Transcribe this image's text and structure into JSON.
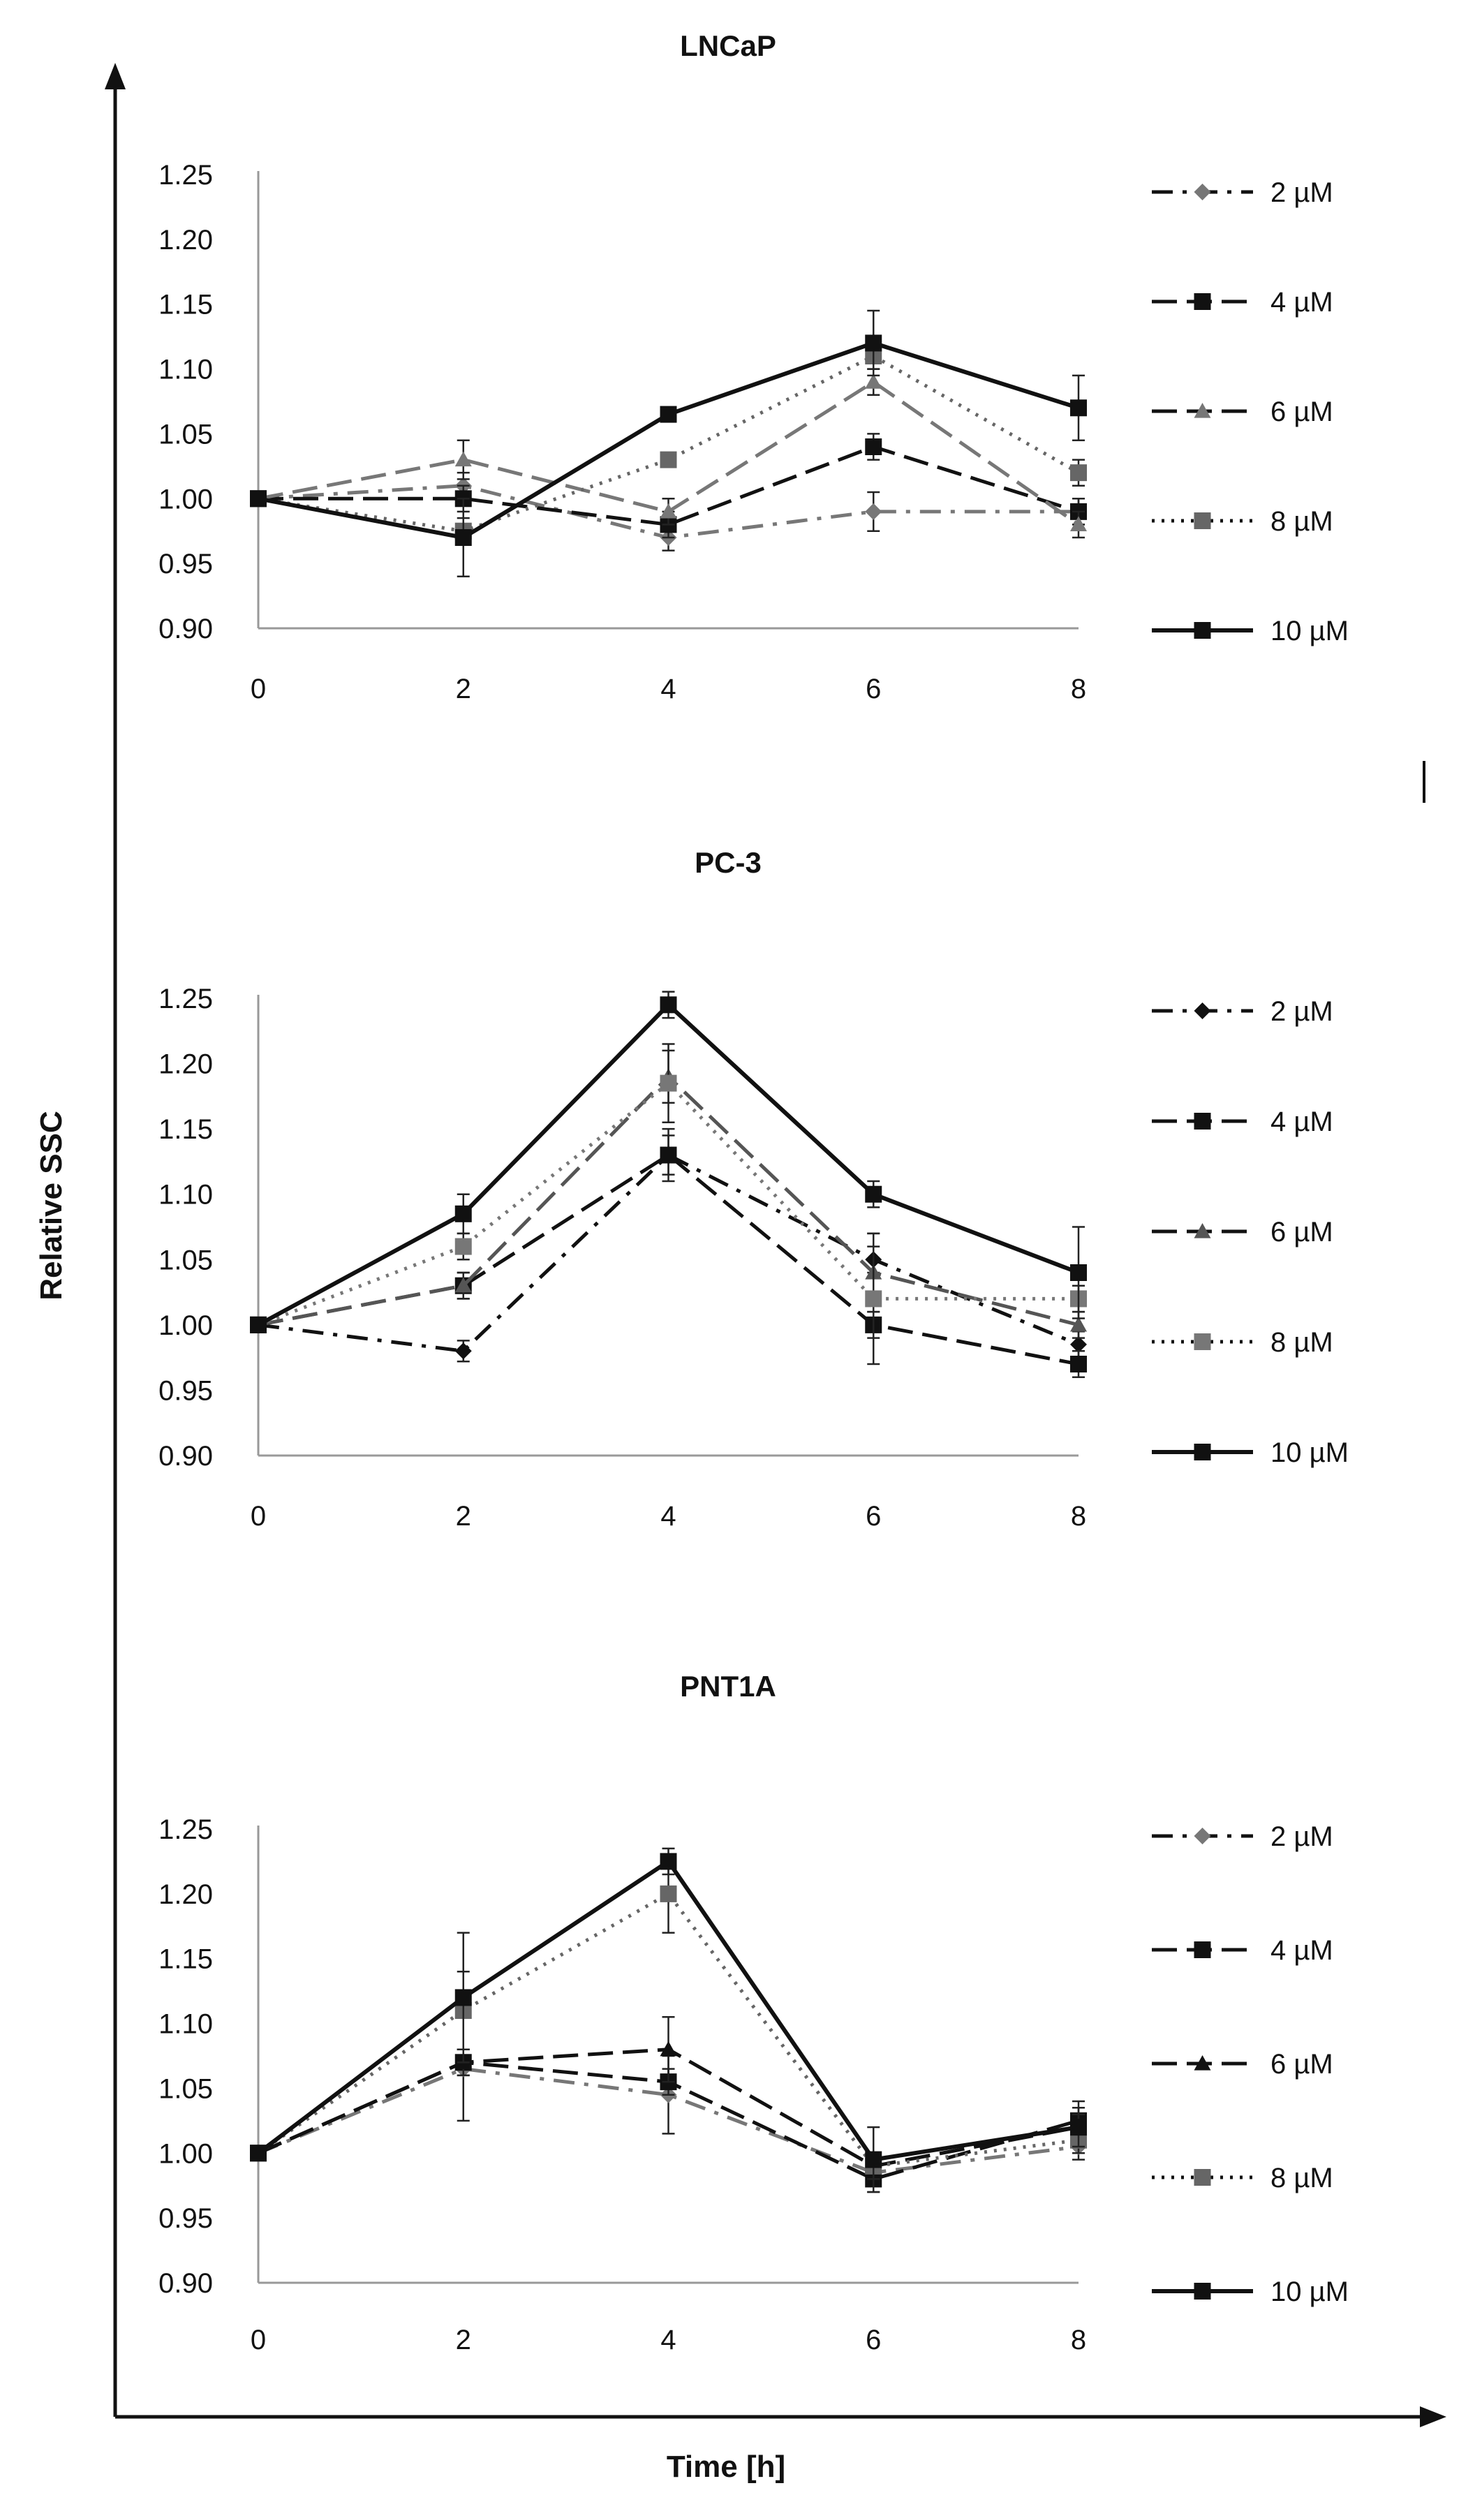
{
  "figure": {
    "ylabel": "Relative SSC",
    "xlabel": "Time [h]"
  },
  "chart_data": [
    {
      "type": "line",
      "title": "LNCaP",
      "x": [
        0,
        2,
        4,
        6,
        8
      ],
      "xlabel": "Time [h]",
      "ylabel": "Relative SSC",
      "ylim": [
        0.9,
        1.25
      ],
      "yticks": [
        "1.25",
        "1.20",
        "1.15",
        "1.10",
        "1.05",
        "1.00",
        "0.95",
        "0.90"
      ],
      "xticks": [
        "0",
        "2",
        "4",
        "6",
        "8"
      ],
      "legend_position": "right",
      "series": [
        {
          "name": "2 µM",
          "values": [
            1.0,
            1.01,
            0.97,
            0.99,
            0.99
          ],
          "errors": [
            0,
            0.01,
            0.01,
            0.015,
            0.01
          ],
          "line": "dashdot",
          "marker": "diamond",
          "color": "#777777"
        },
        {
          "name": "4 µM",
          "values": [
            1.0,
            1.0,
            0.98,
            1.04,
            0.99
          ],
          "errors": [
            0,
            0.01,
            0.01,
            0.01,
            0.01
          ],
          "line": "dash",
          "marker": "square",
          "color": "#111111"
        },
        {
          "name": "6 µM",
          "values": [
            1.0,
            1.03,
            0.99,
            1.09,
            0.98
          ],
          "errors": [
            0,
            0.015,
            0.01,
            0.01,
            0.01
          ],
          "line": "dash",
          "marker": "triangle",
          "color": "#777777"
        },
        {
          "name": "8 µM",
          "values": [
            1.0,
            0.975,
            1.03,
            1.11,
            1.02
          ],
          "errors": [
            0,
            0.01,
            0.005,
            0.01,
            0.01
          ],
          "line": "dot",
          "marker": "square",
          "color": "#666666"
        },
        {
          "name": "10 µM",
          "values": [
            1.0,
            0.97,
            1.065,
            1.12,
            1.07
          ],
          "errors": [
            0,
            0.03,
            0.005,
            0.025,
            0.025
          ],
          "line": "solid",
          "marker": "square",
          "color": "#111111"
        }
      ]
    },
    {
      "type": "line",
      "title": "PC-3",
      "x": [
        0,
        2,
        4,
        6,
        8
      ],
      "xlabel": "Time [h]",
      "ylabel": "Relative SSC",
      "ylim": [
        0.9,
        1.25
      ],
      "yticks": [
        "1.25",
        "1.20",
        "1.15",
        "1.10",
        "1.05",
        "1.00",
        "0.95",
        "0.90"
      ],
      "xticks": [
        "0",
        "2",
        "4",
        "6",
        "8"
      ],
      "legend_position": "right",
      "series": [
        {
          "name": "2 µM",
          "values": [
            1.0,
            0.98,
            1.13,
            1.05,
            0.985
          ],
          "errors": [
            0,
            0.008,
            0.015,
            0.01,
            0.01
          ],
          "line": "dashdot",
          "marker": "diamond",
          "color": "#111111"
        },
        {
          "name": "4 µM",
          "values": [
            1.0,
            1.03,
            1.13,
            1.0,
            0.97
          ],
          "errors": [
            0,
            0.01,
            0.02,
            0.01,
            0.01
          ],
          "line": "dash",
          "marker": "square",
          "color": "#111111"
        },
        {
          "name": "6 µM",
          "values": [
            1.0,
            1.03,
            1.19,
            1.04,
            1.0
          ],
          "errors": [
            0,
            0.01,
            0.02,
            0.03,
            0.01
          ],
          "line": "dash",
          "marker": "triangle",
          "color": "#555555"
        },
        {
          "name": "8 µM",
          "values": [
            1.0,
            1.06,
            1.185,
            1.02,
            1.02
          ],
          "errors": [
            0,
            0.01,
            0.03,
            0.05,
            0.01
          ],
          "line": "dot",
          "marker": "square",
          "color": "#777777"
        },
        {
          "name": "10 µM",
          "values": [
            1.0,
            1.085,
            1.245,
            1.1,
            1.04
          ],
          "errors": [
            0,
            0.015,
            0.01,
            0.01,
            0.035
          ],
          "line": "solid",
          "marker": "square",
          "color": "#111111"
        }
      ]
    },
    {
      "type": "line",
      "title": "PNT1A",
      "x": [
        0,
        2,
        4,
        6,
        8
      ],
      "xlabel": "Time [h]",
      "ylabel": "Relative SSC",
      "ylim": [
        0.9,
        1.25
      ],
      "yticks": [
        "1.25",
        "1.20",
        "1.15",
        "1.10",
        "1.05",
        "1.00",
        "0.95",
        "0.90"
      ],
      "xticks": [
        "0",
        "2",
        "4",
        "6",
        "8"
      ],
      "legend_position": "right",
      "series": [
        {
          "name": "2 µM",
          "values": [
            1.0,
            1.065,
            1.045,
            0.985,
            1.005
          ],
          "errors": [
            0,
            0.04,
            0.03,
            0.01,
            0.01
          ],
          "line": "dashdot",
          "marker": "diamond",
          "color": "#777777"
        },
        {
          "name": "4 µM",
          "values": [
            1.0,
            1.07,
            1.055,
            0.98,
            1.025
          ],
          "errors": [
            0,
            0.01,
            0.01,
            0.01,
            0.015
          ],
          "line": "dash",
          "marker": "square",
          "color": "#111111"
        },
        {
          "name": "6 µM",
          "values": [
            1.0,
            1.07,
            1.08,
            0.99,
            1.02
          ],
          "errors": [
            0,
            0.01,
            0.025,
            0.01,
            0.01
          ],
          "line": "dash",
          "marker": "triangle",
          "color": "#111111"
        },
        {
          "name": "8 µM",
          "values": [
            1.0,
            1.11,
            1.2,
            0.99,
            1.01
          ],
          "errors": [
            0,
            0.03,
            0.03,
            0.01,
            0.01
          ],
          "line": "dot",
          "marker": "square",
          "color": "#666666"
        },
        {
          "name": "10 µM",
          "values": [
            1.0,
            1.12,
            1.225,
            0.995,
            1.02
          ],
          "errors": [
            0,
            0.05,
            0.01,
            0.025,
            0.015
          ],
          "line": "solid",
          "marker": "square",
          "color": "#111111"
        }
      ]
    }
  ]
}
